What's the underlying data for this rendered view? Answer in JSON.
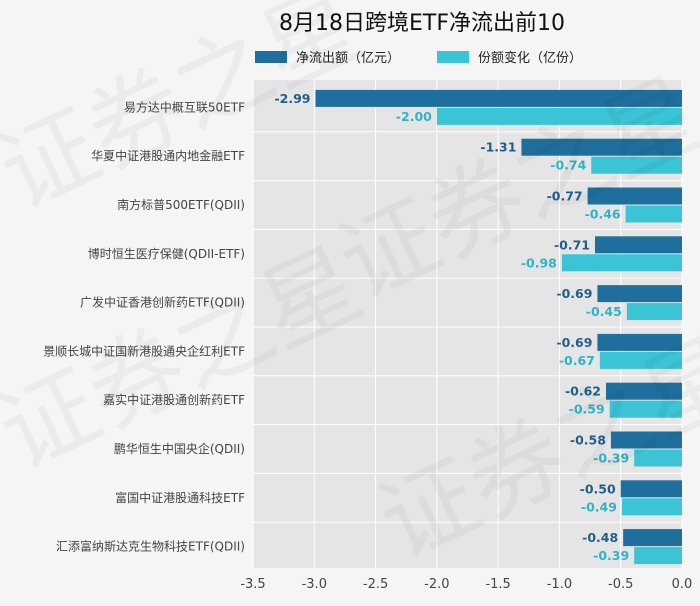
{
  "chart_data": {
    "type": "bar",
    "orientation": "horizontal",
    "title": "8月18日跨境ETF净流出前10",
    "categories": [
      "易方达中概互联50ETF",
      "华夏中证港股通内地金融ETF",
      "南方标普500ETF(QDII)",
      "博时恒生医疗保健(QDII-ETF)",
      "广发中证香港创新药ETF(QDII)",
      "景顺长城中证国新港股通央企红利ETF",
      "嘉实中证港股通创新药ETF",
      "鹏华恒生中国央企(QDII)",
      "富国中证港股通科技ETF",
      "汇添富纳斯达克生物科技ETF(QDII)"
    ],
    "series": [
      {
        "name": "净流出额（亿元）",
        "color": "#1f6f9e",
        "label_color": "#1f5f88",
        "values": [
          -2.99,
          -1.31,
          -0.77,
          -0.71,
          -0.69,
          -0.69,
          -0.62,
          -0.58,
          -0.5,
          -0.48
        ],
        "labels": [
          "-2.99",
          "-1.31",
          "-0.77",
          "-0.71",
          "-0.69",
          "-0.69",
          "-0.62",
          "-0.58",
          "-0.50",
          "-0.48"
        ]
      },
      {
        "name": "份额变化（亿份）",
        "color": "#3bc4d6",
        "label_color": "#2fb3c8",
        "values": [
          -2.0,
          -0.74,
          -0.46,
          -0.98,
          -0.45,
          -0.67,
          -0.59,
          -0.39,
          -0.49,
          -0.39
        ],
        "labels": [
          "-2.00",
          "-0.74",
          "-0.46",
          "-0.98",
          "-0.45",
          "-0.67",
          "-0.59",
          "-0.39",
          "-0.49",
          "-0.39"
        ]
      }
    ],
    "xlim": [
      -3.5,
      0.0
    ],
    "xticks": [
      "-3.5",
      "-3.0",
      "-2.5",
      "-2.0",
      "-1.5",
      "-1.0",
      "-0.5",
      "0.0"
    ],
    "xtick_values": [
      -3.5,
      -3.0,
      -2.5,
      -2.0,
      -1.5,
      -1.0,
      -0.5,
      0.0
    ],
    "grid": true,
    "legend_position": "top",
    "plot_bg": "#e5e5e5"
  },
  "watermark": "证券之星"
}
